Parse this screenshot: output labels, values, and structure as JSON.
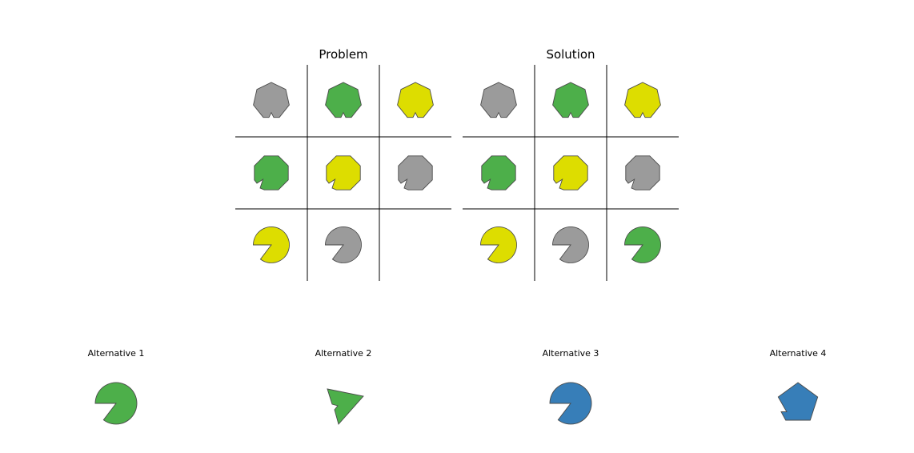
{
  "colors": {
    "gray": "#9b9b9b",
    "green": "#4daf4a",
    "yellow": "#dddd00",
    "blue": "#377eb8"
  },
  "problem": {
    "title": "Problem",
    "cells": [
      [
        {
          "shape": "heptagon-notch",
          "color": "gray"
        },
        {
          "shape": "heptagon-notch",
          "color": "green"
        },
        {
          "shape": "heptagon-notch",
          "color": "yellow"
        }
      ],
      [
        {
          "shape": "octagon-notch",
          "color": "green"
        },
        {
          "shape": "octagon-notch",
          "color": "yellow"
        },
        {
          "shape": "octagon-notch",
          "color": "gray"
        }
      ],
      [
        {
          "shape": "pacman",
          "color": "yellow"
        },
        {
          "shape": "pacman",
          "color": "gray"
        },
        null
      ]
    ]
  },
  "solution": {
    "title": "Solution",
    "cells": [
      [
        {
          "shape": "heptagon-notch",
          "color": "gray"
        },
        {
          "shape": "heptagon-notch",
          "color": "green"
        },
        {
          "shape": "heptagon-notch",
          "color": "yellow"
        }
      ],
      [
        {
          "shape": "octagon-notch",
          "color": "green"
        },
        {
          "shape": "octagon-notch",
          "color": "yellow"
        },
        {
          "shape": "octagon-notch",
          "color": "gray"
        }
      ],
      [
        {
          "shape": "pacman",
          "color": "yellow"
        },
        {
          "shape": "pacman",
          "color": "gray"
        },
        {
          "shape": "pacman",
          "color": "green"
        }
      ]
    ]
  },
  "alternatives": [
    {
      "label": "Alternative 1",
      "shape": "pacman",
      "color": "green"
    },
    {
      "label": "Alternative 2",
      "shape": "triangle-notch",
      "color": "green"
    },
    {
      "label": "Alternative 3",
      "shape": "pacman",
      "color": "blue"
    },
    {
      "label": "Alternative 4",
      "shape": "pentagon-notch",
      "color": "blue"
    }
  ]
}
